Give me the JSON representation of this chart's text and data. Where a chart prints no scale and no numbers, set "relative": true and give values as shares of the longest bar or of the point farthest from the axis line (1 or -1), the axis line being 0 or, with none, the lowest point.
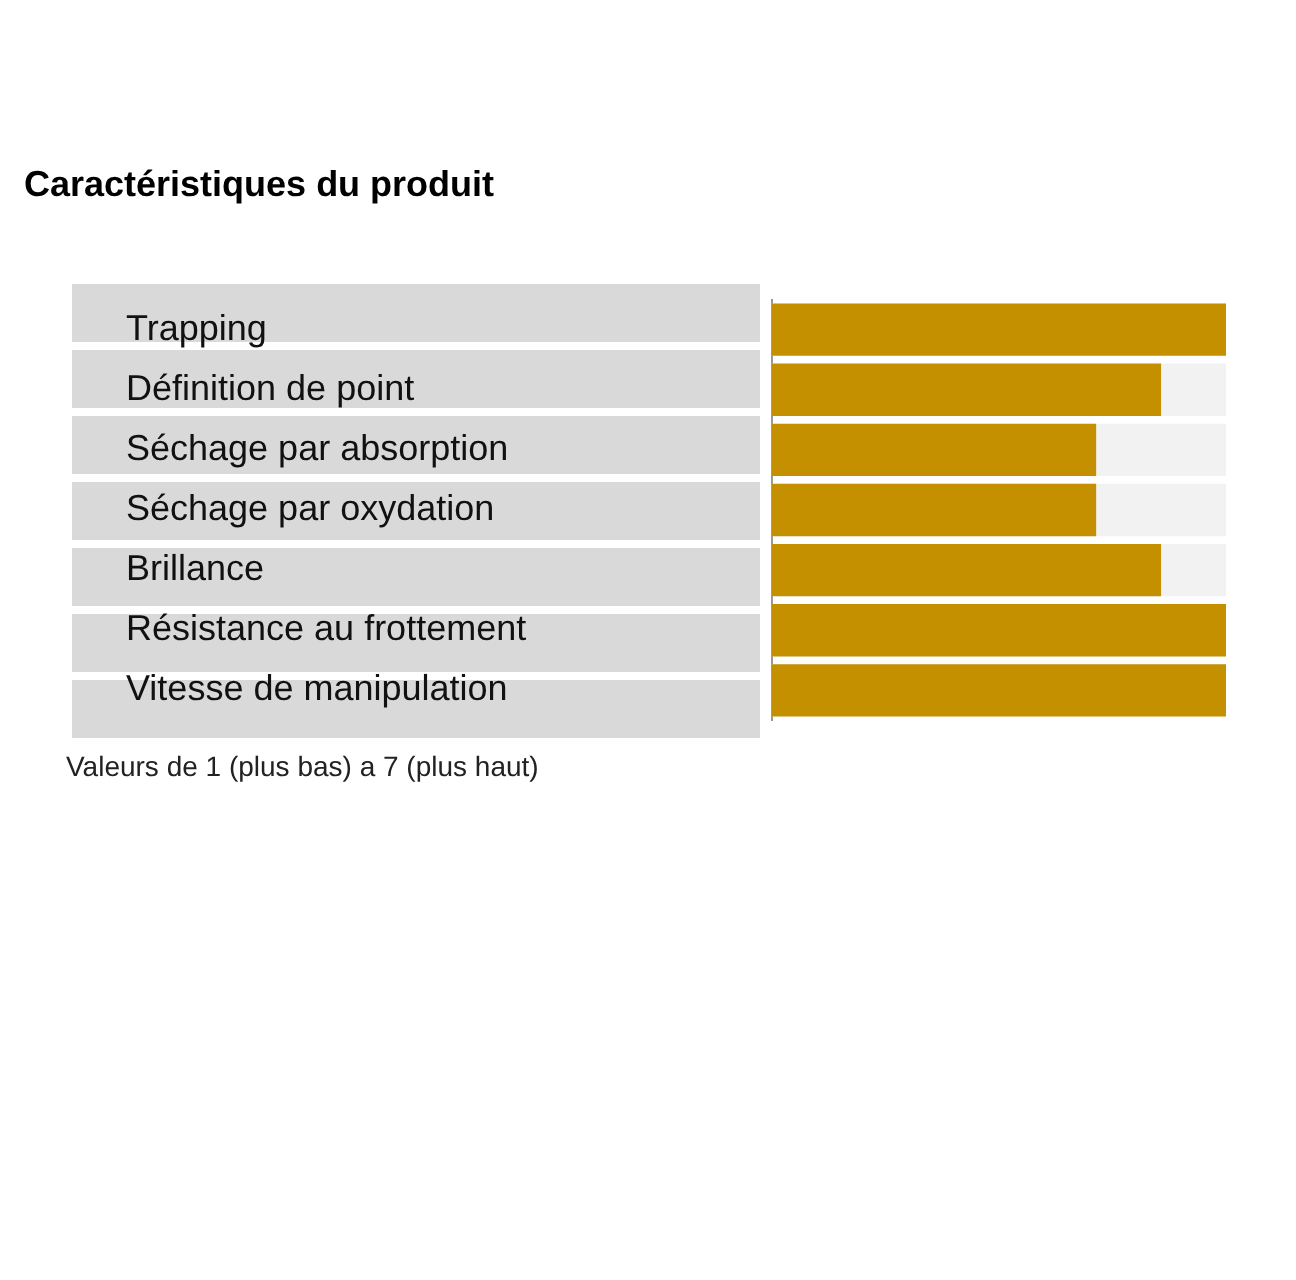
{
  "chart_data": {
    "type": "bar",
    "orientation": "horizontal",
    "relative": true,
    "title": "Caractéristiques du produit",
    "categories": [
      "Trapping",
      "Définition de point",
      "Séchage par absorption",
      "Séchage par oxydation",
      "Brillance",
      "Résistance au frottement",
      "Vitesse de manipulation"
    ],
    "values": [
      1,
      0.857,
      0.714,
      0.714,
      0.857,
      1,
      1
    ],
    "color": "#c49000",
    "annotations": [
      "Valeurs de 1 (plus bas) a 7 (plus haut)"
    ]
  }
}
